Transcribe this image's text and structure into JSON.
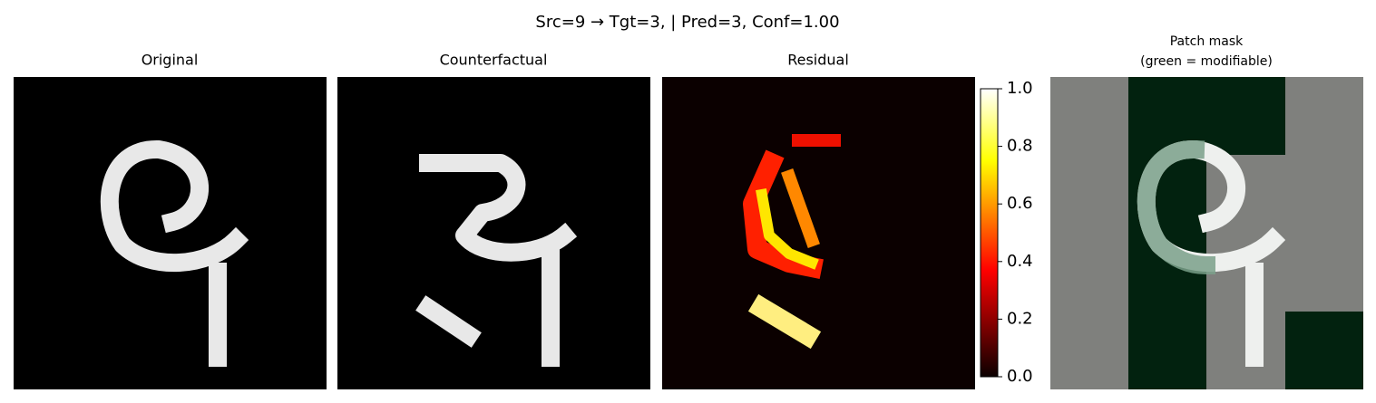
{
  "chart_data": {
    "type": "image",
    "title": "Src=9 → Tgt=3, | Pred=3, Conf=1.00",
    "panels": [
      {
        "title": "Original"
      },
      {
        "title": "Counterfactual"
      },
      {
        "title": "Residual"
      },
      {
        "title": "Patch mask",
        "subtitle": "(green = modifiable)"
      }
    ],
    "colorbar": {
      "lim": [
        0,
        1
      ],
      "ticks": [
        {
          "value": 0,
          "label": "0.0"
        },
        {
          "value": 0.2,
          "label": "0.2"
        },
        {
          "value": 0.4,
          "label": "0.4"
        },
        {
          "value": 0.6,
          "label": "0.6"
        },
        {
          "value": 0.8,
          "label": "0.8"
        },
        {
          "value": 1,
          "label": "1.0"
        }
      ]
    }
  }
}
